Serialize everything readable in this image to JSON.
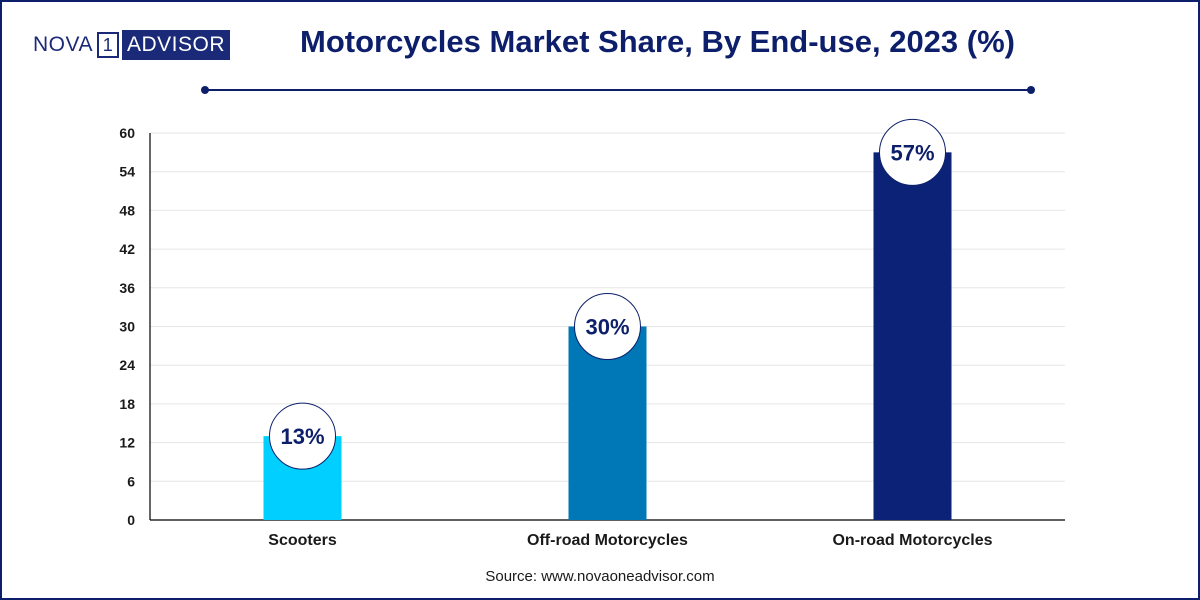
{
  "header": {
    "logo_part_a": "NOVA",
    "logo_mark": "1",
    "logo_part_b": "ADVISOR",
    "title": "Motorcycles Market Share, By End-use, 2023 (%)"
  },
  "footer": {
    "source": "Source: www.novaoneadvisor.com"
  },
  "colors": {
    "brand": "#0d1f6b",
    "scooters": "#00cfff",
    "off_road": "#0077b6",
    "on_road": "#0b2276",
    "grid": "#e6e6e6"
  },
  "chart_data": {
    "type": "bar",
    "title": "Motorcycles Market Share, By End-use, 2023 (%)",
    "categories": [
      "Scooters",
      "Off-road Motorcycles",
      "On-road Motorcycles"
    ],
    "values": [
      13,
      30,
      57
    ],
    "value_labels": [
      "13%",
      "30%",
      "57%"
    ],
    "bar_colors": [
      "#00cfff",
      "#0077b6",
      "#0b2276"
    ],
    "yticks": [
      0,
      6,
      12,
      18,
      24,
      30,
      36,
      42,
      48,
      54,
      60
    ],
    "ylim": [
      0,
      60
    ],
    "grid": true,
    "legend": "none"
  }
}
